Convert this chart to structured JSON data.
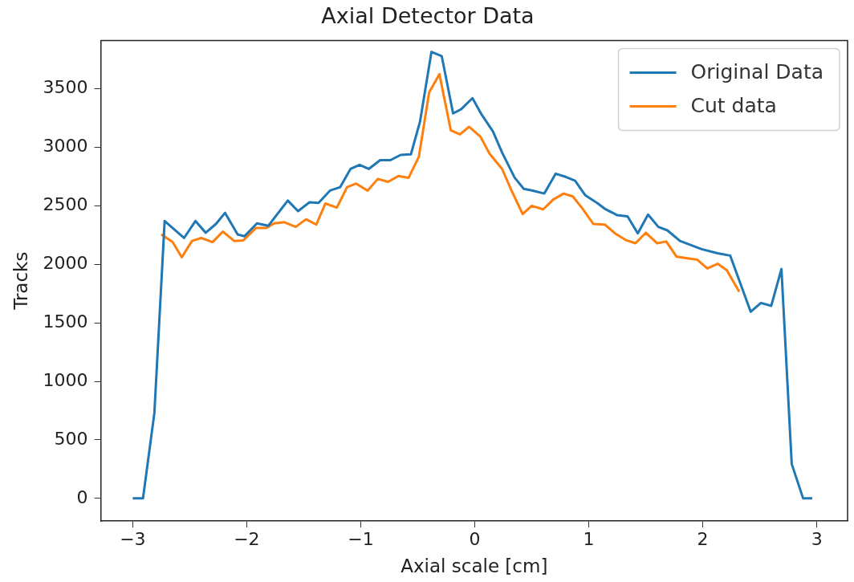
{
  "chart_data": {
    "type": "line",
    "title": "Axial Detector Data",
    "xlabel": "Axial scale [cm]",
    "ylabel": "Tracks",
    "xlim": [
      -3.28,
      3.27
    ],
    "ylim": [
      -193,
      3913
    ],
    "xticks": [
      -3,
      -2,
      -1,
      0,
      1,
      2,
      3
    ],
    "yticks": [
      0,
      500,
      1000,
      1500,
      2000,
      2500,
      3000,
      3500
    ],
    "grid": false,
    "legend": "top right",
    "marker": "none",
    "line_style": "solid",
    "series": [
      {
        "name": "Original Data",
        "color": "#1f77b4",
        "x": [
          -3.0,
          -2.91,
          -2.81,
          -2.72,
          -2.55,
          -2.45,
          -2.36,
          -2.27,
          -2.19,
          -2.08,
          -2.02,
          -1.91,
          -1.81,
          -1.64,
          -1.55,
          -1.45,
          -1.37,
          -1.27,
          -1.18,
          -1.09,
          -1.01,
          -0.93,
          -0.83,
          -0.74,
          -0.65,
          -0.56,
          -0.48,
          -0.38,
          -0.29,
          -0.19,
          -0.12,
          -0.02,
          0.06,
          0.16,
          0.24,
          0.35,
          0.43,
          0.51,
          0.61,
          0.71,
          0.79,
          0.88,
          0.97,
          1.08,
          1.14,
          1.25,
          1.34,
          1.43,
          1.52,
          1.61,
          1.69,
          1.8,
          1.99,
          2.13,
          2.24,
          2.42,
          2.51,
          2.6,
          2.69,
          2.78,
          2.88,
          2.96
        ],
        "values": [
          0,
          0,
          730,
          2370,
          2225,
          2370,
          2270,
          2345,
          2440,
          2255,
          2240,
          2350,
          2330,
          2545,
          2455,
          2530,
          2525,
          2630,
          2660,
          2815,
          2850,
          2815,
          2890,
          2890,
          2935,
          2940,
          3220,
          3815,
          3780,
          3290,
          3325,
          3420,
          3280,
          3135,
          2955,
          2740,
          2645,
          2630,
          2605,
          2775,
          2750,
          2715,
          2590,
          2520,
          2475,
          2420,
          2410,
          2265,
          2425,
          2320,
          2290,
          2200,
          2130,
          2095,
          2075,
          1595,
          1670,
          1645,
          1960,
          295,
          0,
          0
        ]
      },
      {
        "name": "Cut data",
        "color": "#ff7f0e",
        "x": [
          -2.75,
          -2.65,
          -2.57,
          -2.48,
          -2.4,
          -2.3,
          -2.21,
          -2.11,
          -2.03,
          -1.92,
          -1.83,
          -1.76,
          -1.67,
          -1.57,
          -1.48,
          -1.39,
          -1.31,
          -1.21,
          -1.12,
          -1.04,
          -0.94,
          -0.85,
          -0.76,
          -0.67,
          -0.58,
          -0.49,
          -0.4,
          -0.31,
          -0.21,
          -0.13,
          -0.05,
          0.05,
          0.13,
          0.24,
          0.32,
          0.42,
          0.5,
          0.6,
          0.69,
          0.78,
          0.86,
          0.95,
          1.04,
          1.14,
          1.23,
          1.33,
          1.41,
          1.5,
          1.6,
          1.68,
          1.77,
          1.95,
          2.04,
          2.13,
          2.21,
          2.32
        ],
        "values": [
          2255,
          2190,
          2060,
          2200,
          2225,
          2190,
          2280,
          2200,
          2205,
          2310,
          2310,
          2350,
          2360,
          2320,
          2385,
          2340,
          2520,
          2485,
          2660,
          2690,
          2630,
          2730,
          2705,
          2755,
          2740,
          2920,
          3470,
          3625,
          3145,
          3110,
          3175,
          3090,
          2945,
          2815,
          2635,
          2430,
          2500,
          2470,
          2555,
          2605,
          2580,
          2470,
          2345,
          2340,
          2265,
          2205,
          2180,
          2270,
          2180,
          2195,
          2065,
          2040,
          1965,
          2005,
          1950,
          1765
        ]
      }
    ]
  }
}
